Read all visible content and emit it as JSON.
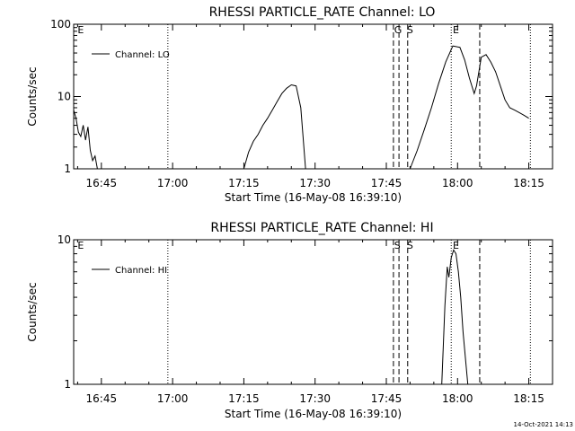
{
  "footer_timestamp": "14-Oct-2021 14:13",
  "chart_data": [
    {
      "type": "line",
      "title": "RHESSI PARTICLE_RATE Channel: LO",
      "xlabel": "Start Time (16-May-08 16:39:10)",
      "ylabel": "Counts/sec",
      "y_scale": "log",
      "ylim": [
        1,
        100
      ],
      "xlim": [
        "16:39:10",
        "18:20:00"
      ],
      "x_tick_labels": [
        "16:45",
        "17:00",
        "17:15",
        "17:30",
        "17:45",
        "18:00",
        "18:15"
      ],
      "y_tick_labels": [
        "1",
        "10",
        "100"
      ],
      "legend": {
        "entries": [
          "Channel: LO"
        ],
        "placement": "top-left"
      },
      "grid": false,
      "series": [
        {
          "name": "Channel: LO",
          "segments": [
            {
              "x": [
                "16:39:10",
                "16:39:40",
                "16:40:10",
                "16:40:40",
                "16:41:10",
                "16:41:40",
                "16:42:10",
                "16:42:40",
                "16:43:10",
                "16:43:40",
                "16:44:10"
              ],
              "y": [
                6.5,
                5.0,
                3.2,
                2.8,
                4.0,
                2.5,
                3.8,
                1.8,
                1.3,
                1.5,
                1.0
              ]
            },
            {
              "x": [
                "17:15:00",
                "17:16:00",
                "17:17:00",
                "17:18:00",
                "17:19:00",
                "17:20:00",
                "17:21:00",
                "17:22:00",
                "17:23:00",
                "17:24:00",
                "17:25:00",
                "17:26:00",
                "17:27:00",
                "17:28:00"
              ],
              "y": [
                1.0,
                1.7,
                2.4,
                3.0,
                4.0,
                5.0,
                6.5,
                8.5,
                11.0,
                13.0,
                14.5,
                14.0,
                7.0,
                1.0
              ]
            },
            {
              "x": [
                "17:50:00",
                "17:51:30",
                "17:53:00",
                "17:54:30",
                "17:56:00",
                "17:57:30",
                "17:59:00",
                "18:00:30",
                "18:01:30",
                "18:02:30",
                "18:03:30",
                "18:04:00",
                "18:05:00",
                "18:06:00",
                "18:07:00",
                "18:08:00",
                "18:09:00",
                "18:10:00",
                "18:11:00",
                "18:12:00",
                "18:13:00",
                "18:14:00",
                "18:15:00"
              ],
              "y": [
                1.0,
                1.8,
                3.5,
                7.0,
                15.0,
                30.0,
                50.0,
                48.0,
                32.0,
                18.0,
                11.0,
                14.0,
                35.0,
                38.0,
                30.0,
                22.0,
                14.0,
                9.0,
                7.0,
                6.5,
                6.0,
                5.5,
                5.0
              ]
            }
          ]
        }
      ],
      "annotations": {
        "dotted_vlines": [
          "16:59:00",
          "17:58:40",
          "18:15:20"
        ],
        "dashed_vlines": [
          "17:46:30",
          "17:47:40",
          "17:49:30",
          "18:04:40"
        ],
        "markers": [
          {
            "label": "E",
            "x": "16:40:00"
          },
          {
            "label": "G",
            "x": "17:46:40"
          },
          {
            "label": "S",
            "x": "17:49:20"
          },
          {
            "label": "E",
            "x": "17:59:00"
          }
        ]
      }
    },
    {
      "type": "line",
      "title": "RHESSI PARTICLE_RATE Channel: HI",
      "xlabel": "Start Time (16-May-08 16:39:10)",
      "ylabel": "Counts/sec",
      "y_scale": "log",
      "ylim": [
        1,
        10
      ],
      "xlim": [
        "16:39:10",
        "18:20:00"
      ],
      "x_tick_labels": [
        "16:45",
        "17:00",
        "17:15",
        "17:30",
        "17:45",
        "18:00",
        "18:15"
      ],
      "y_tick_labels": [
        "1",
        "10"
      ],
      "legend": {
        "entries": [
          "Channel: HI"
        ],
        "placement": "top-left"
      },
      "grid": false,
      "series": [
        {
          "name": "Channel: HI",
          "segments": [
            {
              "x": [
                "17:56:40",
                "17:57:20",
                "17:57:50",
                "17:58:10",
                "17:58:40",
                "17:59:10",
                "17:59:40",
                "18:00:10",
                "18:00:40",
                "18:01:10",
                "18:01:40",
                "18:02:10"
              ],
              "y": [
                1.0,
                3.5,
                6.5,
                5.5,
                7.5,
                8.5,
                8.0,
                6.0,
                4.0,
                2.3,
                1.5,
                1.0
              ]
            }
          ]
        }
      ],
      "annotations": {
        "dotted_vlines": [
          "16:59:00",
          "17:58:40",
          "18:15:20"
        ],
        "dashed_vlines": [
          "17:46:30",
          "17:47:40",
          "17:49:30",
          "18:04:40"
        ],
        "markers": [
          {
            "label": "E",
            "x": "16:40:00"
          },
          {
            "label": "S",
            "x": "17:46:40"
          },
          {
            "label": "S",
            "x": "17:49:20"
          },
          {
            "label": "E",
            "x": "17:59:00"
          }
        ]
      }
    }
  ]
}
